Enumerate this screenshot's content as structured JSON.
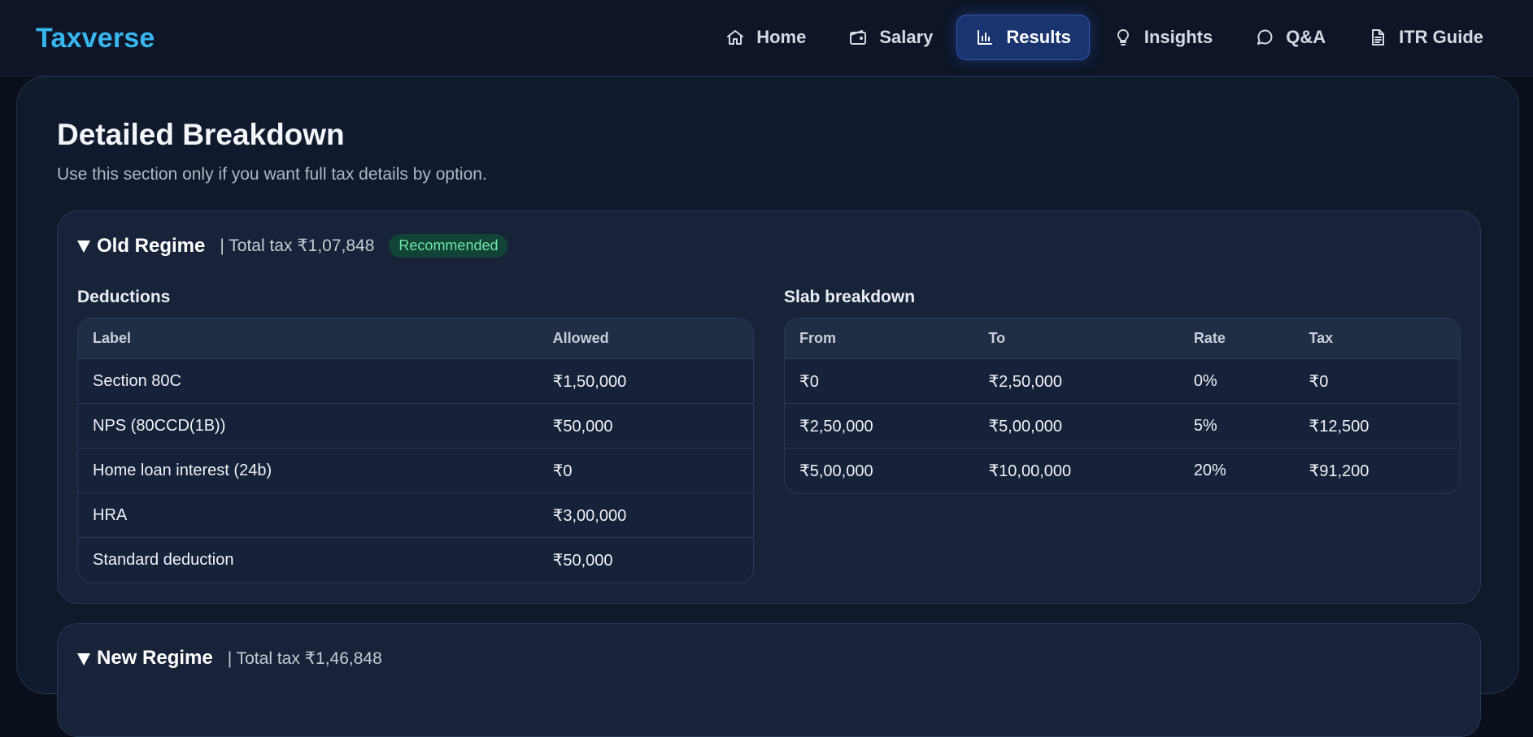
{
  "app": {
    "brand": "Taxverse"
  },
  "nav": [
    {
      "label": "Home",
      "icon": "home-icon"
    },
    {
      "label": "Salary",
      "icon": "wallet-icon"
    },
    {
      "label": "Results",
      "icon": "bar-chart-icon",
      "active": true
    },
    {
      "label": "Insights",
      "icon": "lightbulb-icon"
    },
    {
      "label": "Q&A",
      "icon": "chat-icon"
    },
    {
      "label": "ITR Guide",
      "icon": "document-icon"
    }
  ],
  "page": {
    "title": "Detailed Breakdown",
    "subtitle": "Use this section only if you want full tax details by option."
  },
  "old_regime": {
    "name": "Old Regime",
    "total": "| Total tax ₹1,07,848",
    "badge": "Recommended",
    "deductions_title": "Deductions",
    "deductions_headers": [
      "Label",
      "Allowed"
    ],
    "deductions": [
      [
        "Section 80C",
        "₹1,50,000"
      ],
      [
        "NPS (80CCD(1B))",
        "₹50,000"
      ],
      [
        "Home loan interest (24b)",
        "₹0"
      ],
      [
        "HRA",
        "₹3,00,000"
      ],
      [
        "Standard deduction",
        "₹50,000"
      ]
    ],
    "slab_title": "Slab breakdown",
    "slab_headers": [
      "From",
      "To",
      "Rate",
      "Tax"
    ],
    "slabs": [
      [
        "₹0",
        "₹2,50,000",
        "0%",
        "₹0"
      ],
      [
        "₹2,50,000",
        "₹5,00,000",
        "5%",
        "₹12,500"
      ],
      [
        "₹5,00,000",
        "₹10,00,000",
        "20%",
        "₹91,200"
      ]
    ]
  },
  "new_regime": {
    "name": "New Regime",
    "total": "| Total tax ₹1,46,848"
  },
  "colors": {
    "brand": "#38b6f0",
    "active_nav": "#1a3470",
    "badge_bg": "#114336",
    "badge_text": "#6ee7a6"
  }
}
